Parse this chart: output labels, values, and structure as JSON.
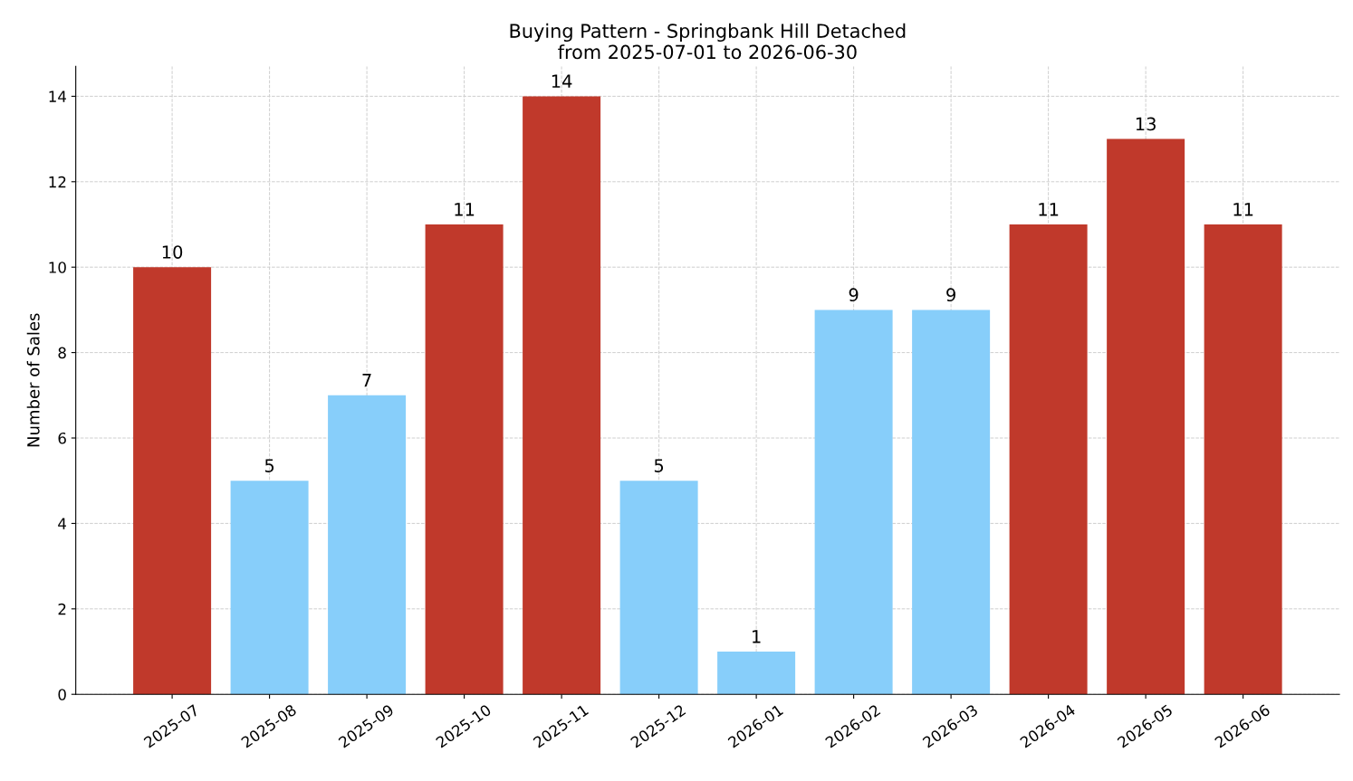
{
  "chart_data": {
    "type": "bar",
    "title": "Buying Pattern - Springbank Hill Detached\nfrom 2025-07-01 to 2026-06-30",
    "ylabel": "Number of Sales",
    "categories": [
      "2025-07",
      "2025-08",
      "2025-09",
      "2025-10",
      "2025-11",
      "2025-12",
      "2026-01",
      "2026-02",
      "2026-03",
      "2026-04",
      "2026-05",
      "2026-06"
    ],
    "values": [
      10,
      5,
      7,
      11,
      14,
      5,
      1,
      9,
      9,
      11,
      13,
      11
    ],
    "colors": [
      "#c0392b",
      "#87cefa",
      "#87cefa",
      "#c0392b",
      "#c0392b",
      "#87cefa",
      "#87cefa",
      "#87cefa",
      "#87cefa",
      "#c0392b",
      "#c0392b",
      "#c0392b"
    ],
    "ylim": [
      0,
      14.7
    ],
    "yticks": [
      0,
      2,
      4,
      6,
      8,
      10,
      12,
      14
    ],
    "grid": true,
    "data_labels": true
  }
}
